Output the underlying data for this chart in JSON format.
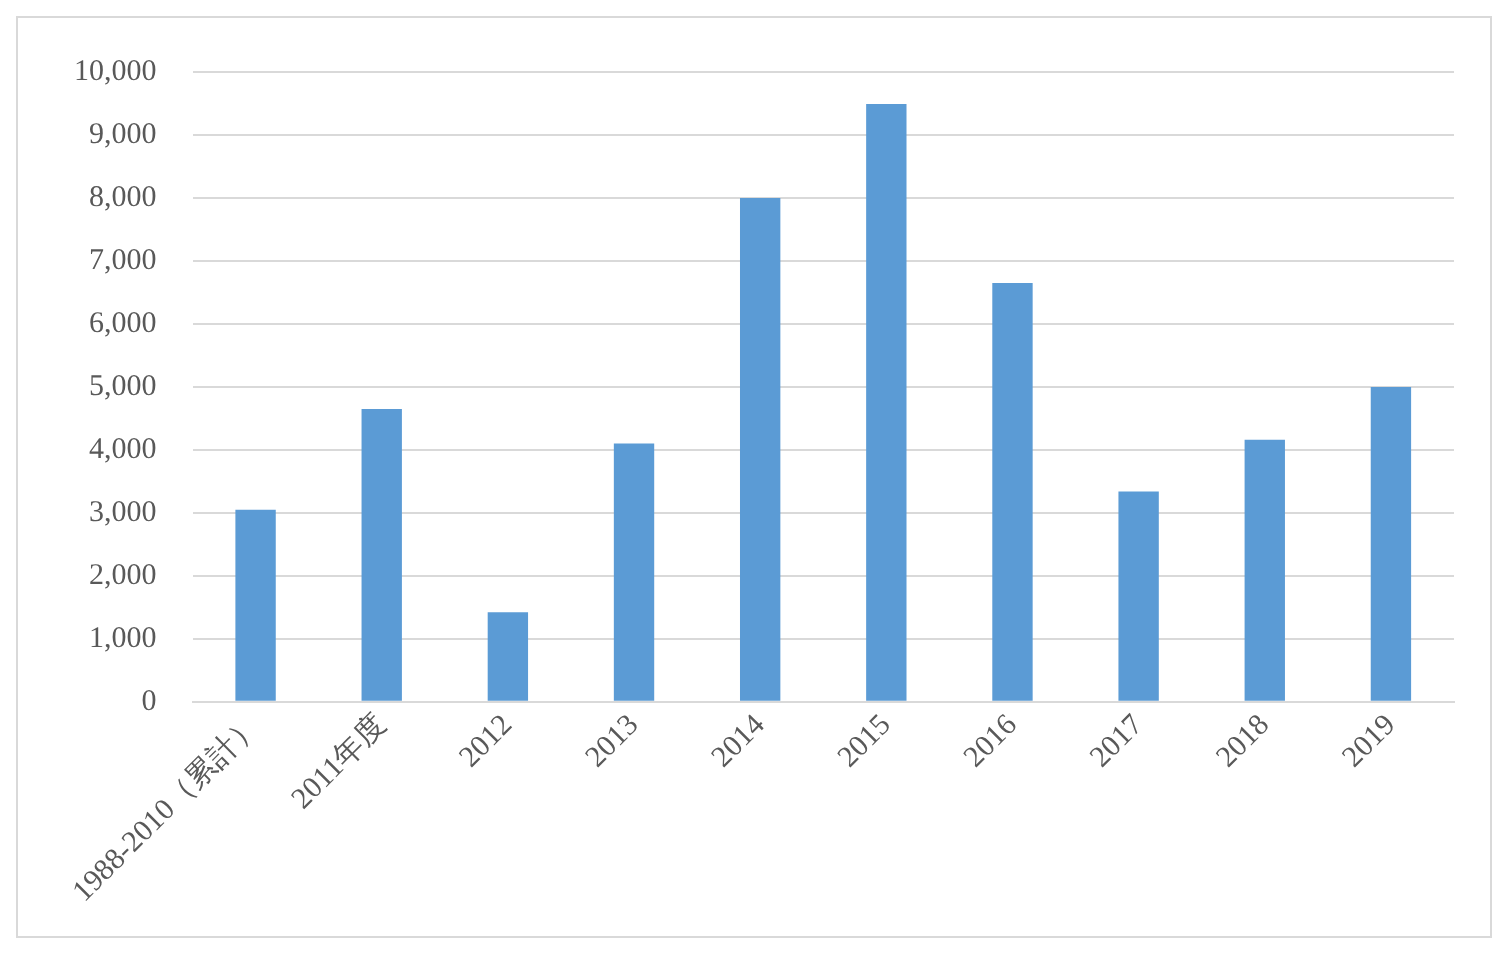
{
  "chart_data": {
    "type": "bar",
    "categories": [
      "1988-2010（累計）",
      "2011年度",
      "2012",
      "2013",
      "2014",
      "2015",
      "2016",
      "2017",
      "2018",
      "2019"
    ],
    "values": [
      3050,
      4650,
      1420,
      4100,
      8000,
      9490,
      6650,
      3340,
      4160,
      5000
    ],
    "color": "#5b9bd5",
    "ylim": [
      0,
      10000
    ],
    "yticks": [
      0,
      {
        "value": 1000,
        "label": "1,000"
      },
      {
        "value": 2000,
        "label": "2,000"
      },
      {
        "value": 3000,
        "label": "3,000"
      },
      {
        "value": 4000,
        "label": "4,000"
      },
      {
        "value": 5000,
        "label": "5,000"
      },
      {
        "value": 6000,
        "label": "6,000"
      },
      {
        "value": 7000,
        "label": "7,000"
      },
      {
        "value": 8000,
        "label": "8,000"
      },
      {
        "value": 9000,
        "label": "9,000"
      },
      {
        "value": 10000,
        "label": "10,000"
      }
    ],
    "grid": "y"
  }
}
